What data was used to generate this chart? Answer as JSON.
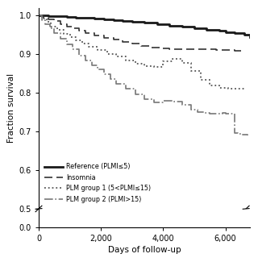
{
  "title": "",
  "xlabel": "Days of follow-up",
  "ylabel": "Fraction survival",
  "xlim": [
    0,
    6800
  ],
  "ylim": [
    0.5,
    1.02
  ],
  "yticks": [
    0.5,
    0.6,
    0.7,
    0.8,
    0.9,
    1.0
  ],
  "ytick_labels": [
    "0.5",
    "0.6",
    "0.7",
    "0.8",
    "0.9",
    "1.0"
  ],
  "yticks_bottom": [
    0.0
  ],
  "ytick_labels_bottom": [
    "0.0"
  ],
  "xticks": [
    0,
    2000,
    4000,
    6000
  ],
  "xtick_labels": [
    "0",
    "2,000",
    "4,000",
    "6,000"
  ],
  "background_color": "#ffffff",
  "reference_x": [
    0,
    300,
    600,
    900,
    1200,
    1500,
    1800,
    2100,
    2400,
    2700,
    3000,
    3400,
    3800,
    4200,
    4600,
    5000,
    5200,
    5400,
    5600,
    5800,
    6000,
    6300,
    6600,
    6800
  ],
  "reference_y": [
    1.0,
    0.999,
    0.998,
    0.996,
    0.995,
    0.994,
    0.992,
    0.99,
    0.988,
    0.986,
    0.984,
    0.981,
    0.978,
    0.974,
    0.971,
    0.968,
    0.966,
    0.963,
    0.962,
    0.96,
    0.957,
    0.954,
    0.951,
    0.944
  ],
  "insomnia_x": [
    0,
    150,
    300,
    500,
    700,
    900,
    1100,
    1300,
    1500,
    1800,
    2100,
    2400,
    2700,
    3000,
    3300,
    3600,
    3900,
    4200,
    4500,
    4800,
    5100,
    5400,
    5700,
    6000,
    6300,
    6600
  ],
  "insomnia_y": [
    1.0,
    0.995,
    0.99,
    0.985,
    0.978,
    0.972,
    0.966,
    0.96,
    0.955,
    0.948,
    0.942,
    0.937,
    0.932,
    0.927,
    0.922,
    0.918,
    0.914,
    0.912,
    0.912,
    0.913,
    0.913,
    0.912,
    0.911,
    0.91,
    0.909,
    0.908
  ],
  "plm1_x": [
    0,
    100,
    250,
    400,
    600,
    800,
    1000,
    1200,
    1400,
    1600,
    1900,
    2200,
    2500,
    2800,
    3100,
    3400,
    3700,
    4000,
    4300,
    4600,
    4900,
    5200,
    5500,
    5800,
    6100,
    6400,
    6600
  ],
  "plm1_y": [
    1.0,
    0.993,
    0.983,
    0.972,
    0.962,
    0.953,
    0.944,
    0.936,
    0.928,
    0.92,
    0.91,
    0.901,
    0.893,
    0.884,
    0.876,
    0.869,
    0.866,
    0.882,
    0.887,
    0.878,
    0.856,
    0.833,
    0.818,
    0.812,
    0.811,
    0.81,
    0.809
  ],
  "plm2_x": [
    0,
    100,
    200,
    350,
    500,
    700,
    900,
    1100,
    1300,
    1500,
    1700,
    1900,
    2100,
    2300,
    2500,
    2800,
    3100,
    3400,
    3700,
    4000,
    4300,
    4600,
    4900,
    5100,
    5300,
    5500,
    5700,
    5900,
    6000,
    6100,
    6200,
    6300,
    6400,
    6500,
    6700
  ],
  "plm2_y": [
    1.0,
    0.988,
    0.978,
    0.966,
    0.954,
    0.94,
    0.926,
    0.912,
    0.897,
    0.884,
    0.872,
    0.86,
    0.848,
    0.836,
    0.824,
    0.81,
    0.797,
    0.784,
    0.776,
    0.78,
    0.778,
    0.768,
    0.756,
    0.75,
    0.748,
    0.746,
    0.747,
    0.748,
    0.747,
    0.746,
    0.745,
    0.695,
    0.693,
    0.691,
    0.69
  ]
}
